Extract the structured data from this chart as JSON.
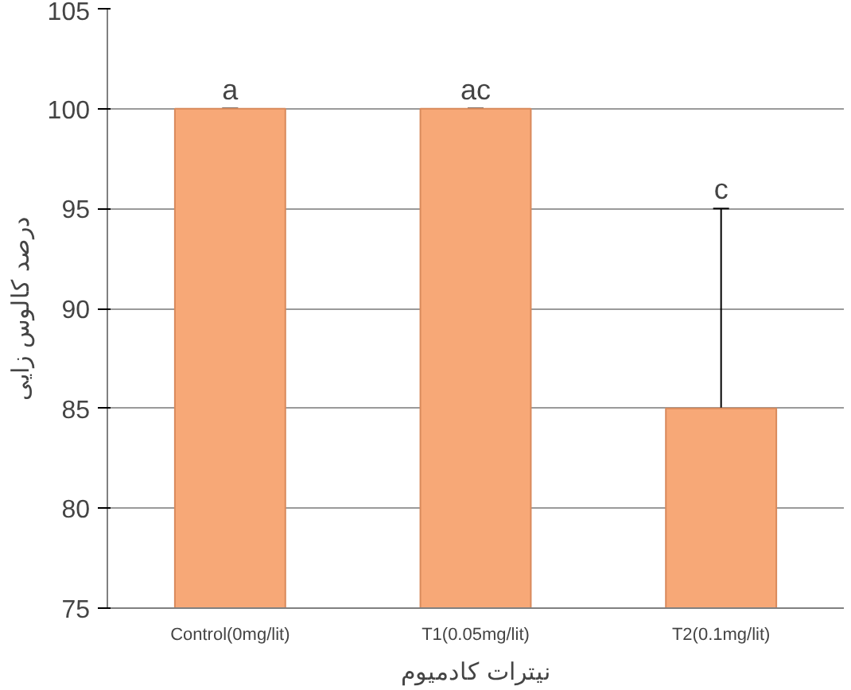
{
  "chart_data": {
    "type": "bar",
    "categories": [
      "Control(0mg/lit)",
      "T1(0.05mg/lit)",
      "T2(0.1mg/lit)"
    ],
    "values": [
      100,
      100,
      85
    ],
    "errors": [
      0,
      0,
      10
    ],
    "color": "#f7a877",
    "ylim": [
      75,
      105
    ],
    "yticks": [
      75,
      80,
      85,
      90,
      95,
      100,
      105
    ],
    "grid": "y",
    "xlabel": "نیترات کادمیوم",
    "ylabel": "درصد کالوس زایی",
    "annotations": [
      "a",
      "ac",
      "c"
    ]
  }
}
